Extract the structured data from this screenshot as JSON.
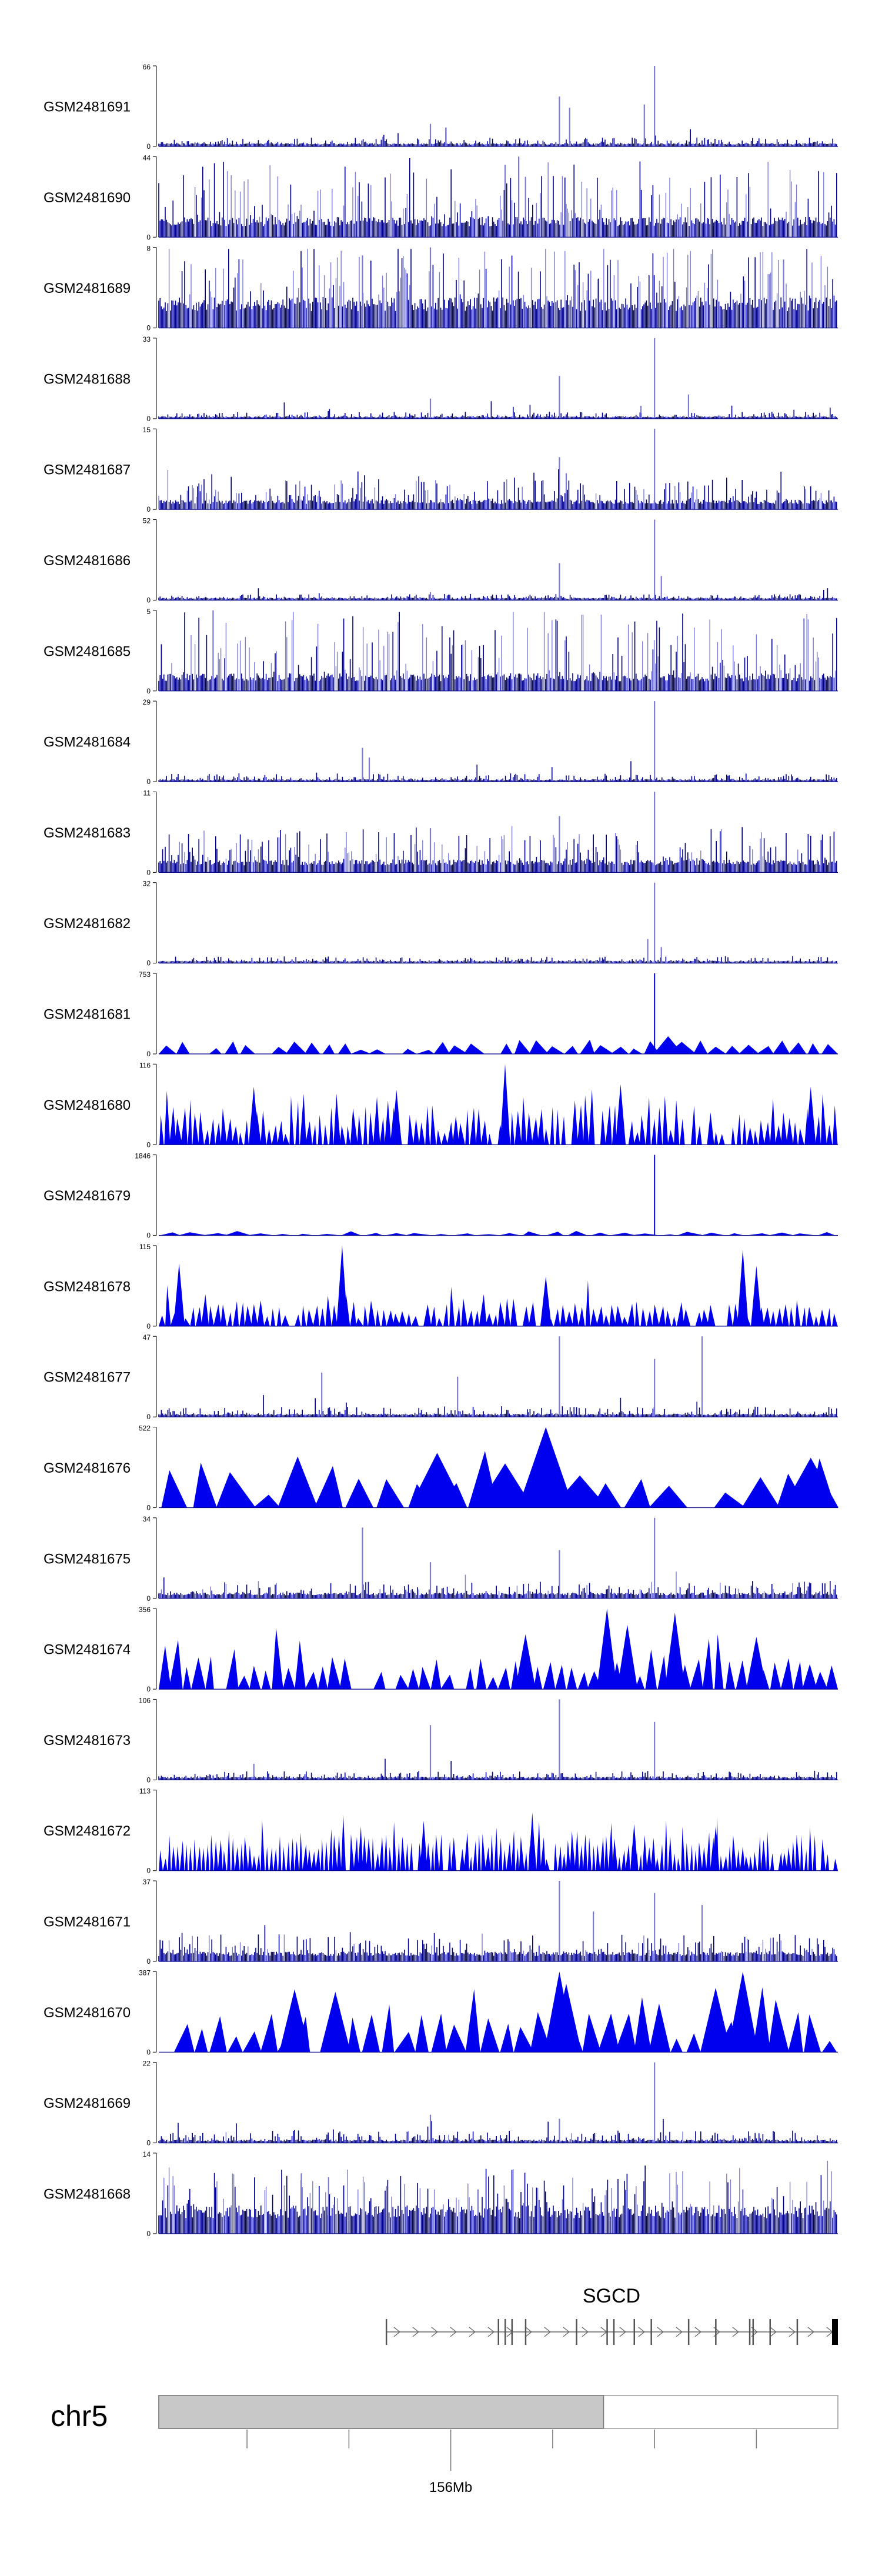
{
  "chart_data": {
    "type": "area",
    "title": "",
    "xlabel": "",
    "ylabel": "",
    "grid": false,
    "legend": "none",
    "colors": {
      "dense": "#00008b",
      "light": "#7b7bd6",
      "area": "#0000ee",
      "gene": "#666666",
      "ideogram": "#c8c8c8"
    },
    "tracks": [
      {
        "name": "GSM2481691",
        "ymax": "66",
        "ymin": "0",
        "style": "bar",
        "baseline": 0.04,
        "noise": 0.08,
        "light_frac": 0.0,
        "peaks": [
          [
            0.59,
            0.62
          ],
          [
            0.605,
            0.48
          ],
          [
            0.73,
            1.0
          ],
          [
            0.715,
            0.52
          ],
          [
            0.4,
            0.28
          ],
          [
            0.33,
            0.12
          ]
        ]
      },
      {
        "name": "GSM2481690",
        "ymax": "44",
        "ymin": "0",
        "style": "bar",
        "baseline": 0.25,
        "noise": 0.75,
        "light_frac": 0.55,
        "peaks": [
          [
            0.53,
            1.0
          ],
          [
            0.51,
            0.9
          ],
          [
            0.54,
            0.75
          ]
        ]
      },
      {
        "name": "GSM2481689",
        "ymax": "8",
        "ymin": "0",
        "style": "bar",
        "baseline": 0.38,
        "noise": 0.78,
        "light_frac": 0.55,
        "peaks": [
          [
            0.4,
            1.0
          ],
          [
            0.3,
            0.9
          ],
          [
            0.92,
            0.85
          ]
        ]
      },
      {
        "name": "GSM2481688",
        "ymax": "33",
        "ymin": "0",
        "style": "bar",
        "baseline": 0.03,
        "noise": 0.06,
        "light_frac": 0.0,
        "peaks": [
          [
            0.73,
            1.0
          ],
          [
            0.59,
            0.53
          ],
          [
            0.4,
            0.25
          ],
          [
            0.78,
            0.3
          ],
          [
            0.71,
            0.16
          ]
        ]
      },
      {
        "name": "GSM2481687",
        "ymax": "15",
        "ymin": "0",
        "style": "bar",
        "baseline": 0.12,
        "noise": 0.3,
        "light_frac": 0.3,
        "peaks": [
          [
            0.73,
            1.0
          ],
          [
            0.59,
            0.65
          ],
          [
            0.6,
            0.45
          ]
        ]
      },
      {
        "name": "GSM2481686",
        "ymax": "52",
        "ymin": "0",
        "style": "bar",
        "baseline": 0.03,
        "noise": 0.05,
        "light_frac": 0.0,
        "peaks": [
          [
            0.73,
            1.0
          ],
          [
            0.59,
            0.46
          ],
          [
            0.74,
            0.3
          ],
          [
            0.4,
            0.1
          ]
        ]
      },
      {
        "name": "GSM2481685",
        "ymax": "5",
        "ymin": "0",
        "style": "bar",
        "baseline": 0.22,
        "noise": 0.8,
        "light_frac": 0.6,
        "peaks": [
          [
            0.08,
            1.0
          ],
          [
            0.95,
            0.9
          ]
        ]
      },
      {
        "name": "GSM2481684",
        "ymax": "29",
        "ymin": "0",
        "style": "bar",
        "baseline": 0.03,
        "noise": 0.08,
        "light_frac": 0.0,
        "peaks": [
          [
            0.73,
            1.0
          ],
          [
            0.3,
            0.42
          ],
          [
            0.31,
            0.3
          ]
        ]
      },
      {
        "name": "GSM2481683",
        "ymax": "11",
        "ymin": "0",
        "style": "bar",
        "baseline": 0.16,
        "noise": 0.4,
        "light_frac": 0.35,
        "peaks": [
          [
            0.73,
            1.0
          ],
          [
            0.59,
            0.7
          ],
          [
            0.4,
            0.55
          ]
        ]
      },
      {
        "name": "GSM2481682",
        "ymax": "32",
        "ymin": "0",
        "style": "bar",
        "baseline": 0.03,
        "noise": 0.06,
        "light_frac": 0.0,
        "peaks": [
          [
            0.73,
            1.0
          ],
          [
            0.72,
            0.3
          ],
          [
            0.74,
            0.2
          ]
        ]
      },
      {
        "name": "GSM2481681",
        "ymax": "753",
        "ymin": "0",
        "style": "tri",
        "tri_count": 42,
        "tri_h": 0.12,
        "tri_var": 0.1,
        "peaks": [
          [
            0.73,
            1.0
          ],
          [
            0.75,
            0.22
          ],
          [
            0.77,
            0.15
          ]
        ]
      },
      {
        "name": "GSM2481680",
        "ymax": "116",
        "ymin": "0",
        "style": "tri",
        "tri_count": 120,
        "tri_h": 0.35,
        "tri_var": 0.35,
        "peaks": [
          [
            0.51,
            1.0
          ],
          [
            0.68,
            0.75
          ],
          [
            0.96,
            0.72
          ],
          [
            0.14,
            0.72
          ],
          [
            0.35,
            0.68
          ]
        ]
      },
      {
        "name": "GSM2481679",
        "ymax": "1846",
        "ymin": "0",
        "style": "tri",
        "tri_count": 30,
        "tri_h": 0.03,
        "tri_var": 0.03,
        "peaks": [
          [
            0.73,
            1.0
          ]
        ]
      },
      {
        "name": "GSM2481678",
        "ymax": "115",
        "ymin": "0",
        "style": "tri",
        "tri_count": 110,
        "tri_h": 0.22,
        "tri_var": 0.3,
        "peaks": [
          [
            0.27,
            1.0
          ],
          [
            0.03,
            0.78
          ],
          [
            0.86,
            0.95
          ],
          [
            0.88,
            0.75
          ],
          [
            0.57,
            0.62
          ]
        ]
      },
      {
        "name": "GSM2481677",
        "ymax": "47",
        "ymin": "0",
        "style": "bar",
        "baseline": 0.04,
        "noise": 0.1,
        "light_frac": 0.0,
        "peaks": [
          [
            0.59,
            1.0
          ],
          [
            0.8,
            1.0
          ],
          [
            0.73,
            0.72
          ],
          [
            0.24,
            0.55
          ],
          [
            0.44,
            0.5
          ]
        ]
      },
      {
        "name": "GSM2481676",
        "ymax": "522",
        "ymin": "0",
        "style": "tri",
        "tri_count": 22,
        "tri_h": 0.35,
        "tri_var": 0.5,
        "peaks": [
          [
            0.57,
            1.0
          ],
          [
            0.41,
            0.68
          ],
          [
            0.96,
            0.62
          ],
          [
            0.51,
            0.55
          ],
          [
            0.62,
            0.4
          ]
        ]
      },
      {
        "name": "GSM2481675",
        "ymax": "34",
        "ymin": "0",
        "style": "bar",
        "baseline": 0.07,
        "noise": 0.15,
        "light_frac": 0.1,
        "peaks": [
          [
            0.73,
            1.0
          ],
          [
            0.3,
            0.88
          ],
          [
            0.59,
            0.6
          ],
          [
            0.4,
            0.45
          ]
        ]
      },
      {
        "name": "GSM2481674",
        "ymax": "356",
        "ymin": "0",
        "style": "tri",
        "tri_count": 60,
        "tri_h": 0.35,
        "tri_var": 0.5,
        "peaks": [
          [
            0.66,
            1.0
          ],
          [
            0.76,
            0.95
          ],
          [
            0.69,
            0.8
          ],
          [
            0.54,
            0.68
          ],
          [
            0.88,
            0.65
          ]
        ]
      },
      {
        "name": "GSM2481673",
        "ymax": "106",
        "ymin": "0",
        "style": "bar",
        "baseline": 0.04,
        "noise": 0.08,
        "light_frac": 0.0,
        "peaks": [
          [
            0.59,
            1.0
          ],
          [
            0.73,
            0.72
          ],
          [
            0.4,
            0.68
          ],
          [
            0.14,
            0.2
          ]
        ]
      },
      {
        "name": "GSM2481672",
        "ymax": "113",
        "ymin": "0",
        "style": "tri",
        "tri_count": 160,
        "tri_h": 0.35,
        "tri_var": 0.3,
        "peaks": [
          [
            0.55,
            0.72
          ],
          [
            0.39,
            0.62
          ],
          [
            0.7,
            0.58
          ],
          [
            0.82,
            0.55
          ]
        ]
      },
      {
        "name": "GSM2481671",
        "ymax": "37",
        "ymin": "0",
        "style": "bar",
        "baseline": 0.12,
        "noise": 0.25,
        "light_frac": 0.25,
        "peaks": [
          [
            0.59,
            1.0
          ],
          [
            0.64,
            0.62
          ],
          [
            0.73,
            0.85
          ],
          [
            0.8,
            0.7
          ]
        ]
      },
      {
        "name": "GSM2481670",
        "ymax": "387",
        "ymin": "0",
        "style": "tri",
        "tri_count": 40,
        "tri_h": 0.35,
        "tri_var": 0.55,
        "peaks": [
          [
            0.59,
            1.0
          ],
          [
            0.6,
            0.85
          ],
          [
            0.86,
            1.0
          ],
          [
            0.2,
            0.78
          ],
          [
            0.26,
            0.75
          ],
          [
            0.82,
            0.8
          ]
        ]
      },
      {
        "name": "GSM2481669",
        "ymax": "22",
        "ymin": "0",
        "style": "bar",
        "baseline": 0.04,
        "noise": 0.12,
        "light_frac": 0.05,
        "peaks": [
          [
            0.73,
            1.0
          ],
          [
            0.4,
            0.35
          ],
          [
            0.59,
            0.3
          ]
        ]
      },
      {
        "name": "GSM2481668",
        "ymax": "14",
        "ymin": "0",
        "style": "bar",
        "baseline": 0.35,
        "noise": 0.55,
        "light_frac": 0.5,
        "peaks": [
          [
            0.21,
            0.75
          ],
          [
            0.25,
            0.7
          ],
          [
            0.47,
            0.55
          ],
          [
            0.86,
            0.55
          ]
        ]
      }
    ],
    "gene": {
      "name": "SGCD",
      "start": 0.335,
      "end": 1.0,
      "exons": [
        0.335,
        0.5,
        0.51,
        0.52,
        0.54,
        0.615,
        0.66,
        0.67,
        0.7,
        0.725,
        0.78,
        0.82,
        0.87,
        0.875,
        0.9,
        0.94,
        1.0
      ]
    },
    "chromosome": {
      "name": "chr5",
      "filled_fraction": 0.655,
      "ticks": [
        0.13,
        0.28,
        0.43,
        0.58,
        0.73,
        0.88
      ],
      "major_tick": {
        "pos": 0.43,
        "label": "156Mb"
      }
    }
  }
}
